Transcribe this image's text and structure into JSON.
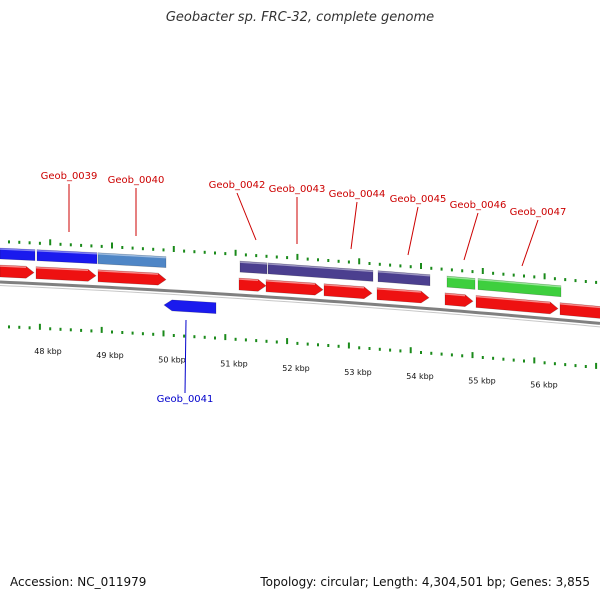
{
  "title": "Geobacter sp. FRC-32, complete genome",
  "footer": {
    "accession": "Accession: NC_011979",
    "summary": "Topology: circular; Length: 4,304,501 bp; Genes: 3,855"
  },
  "colors": {
    "forward_cds": "#ee1111",
    "reverse_cds": "#1a1aee",
    "gene_blue": "#1a1aee",
    "gene_steel": "#4f86c6",
    "gene_purple": "#4b3f8f",
    "gene_green": "#3ecf3e",
    "backbone": "#808080",
    "tick": "#1a8a1a",
    "top_label": "#cc0000",
    "bottom_label": "#0000cc"
  },
  "axis_labels": [
    "48 kbp",
    "49 kbp",
    "50 kbp",
    "51 kbp",
    "52 kbp",
    "53 kbp",
    "54 kbp",
    "55 kbp",
    "56 kbp"
  ],
  "gene_labels_top": [
    "Geob_0039",
    "Geob_0040",
    "Geob_0042",
    "Geob_0043",
    "Geob_0044",
    "Geob_0045",
    "Geob_0046",
    "Geob_0047"
  ],
  "gene_labels_bottom": [
    "Geob_0041"
  ]
}
